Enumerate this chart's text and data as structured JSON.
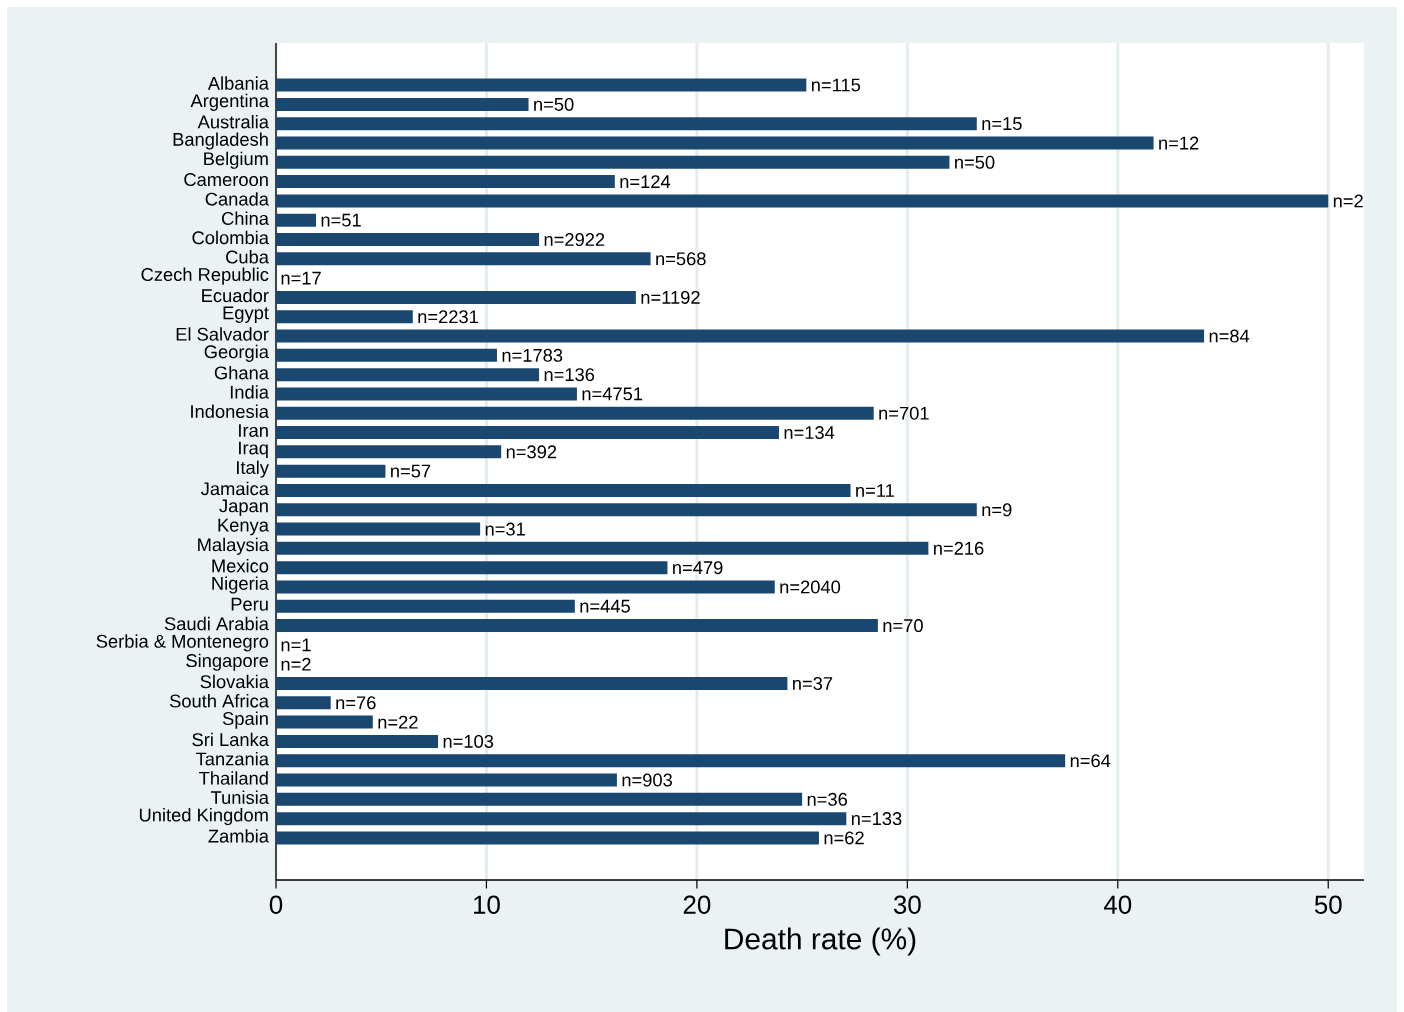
{
  "chart_data": {
    "type": "bar",
    "orientation": "horizontal",
    "xlabel": "Death rate (%)",
    "categories": [
      "Albania",
      "Argentina",
      "Australia",
      "Bangladesh",
      "Belgium",
      "Cameroon",
      "Canada",
      "China",
      "Colombia",
      "Cuba",
      "Czech Republic",
      "Ecuador",
      "Egypt",
      "El Salvador",
      "Georgia",
      "Ghana",
      "India",
      "Indonesia",
      "Iran",
      "Iraq",
      "Italy",
      "Jamaica",
      "Japan",
      "Kenya",
      "Malaysia",
      "Mexico",
      "Nigeria",
      "Peru",
      "Saudi Arabia",
      "Serbia & Montenegro",
      "Singapore",
      "Slovakia",
      "South Africa",
      "Spain",
      "Sri Lanka",
      "Tanzania",
      "Thailand",
      "Tunisia",
      "United Kingdom",
      "Zambia"
    ],
    "values": [
      25.2,
      12.0,
      33.3,
      41.7,
      32.0,
      16.1,
      50.0,
      1.9,
      12.5,
      17.8,
      0,
      17.1,
      6.5,
      44.1,
      10.5,
      12.5,
      14.3,
      28.4,
      23.9,
      10.7,
      5.2,
      27.3,
      33.3,
      9.7,
      31.0,
      18.6,
      23.7,
      14.2,
      28.6,
      0,
      0,
      24.3,
      2.6,
      4.6,
      7.7,
      37.5,
      16.2,
      25.0,
      27.1,
      25.8
    ],
    "annotations": [
      {
        "text": "n=115",
        "x": 25.2,
        "y": "Albania"
      },
      {
        "text": "n=50",
        "x": 12.0,
        "y": "Argentina"
      },
      {
        "text": "n=15",
        "x": 33.3,
        "y": "Australia"
      },
      {
        "text": "n=12",
        "x": 41.7,
        "y": "Bangladesh"
      },
      {
        "text": "n=50",
        "x": 32.0,
        "y": "Belgium"
      },
      {
        "text": "n=124",
        "x": 16.1,
        "y": "Cameroon"
      },
      {
        "text": "n=2",
        "x": 50.0,
        "y": "Canada"
      },
      {
        "text": "n=51",
        "x": 1.9,
        "y": "China"
      },
      {
        "text": "n=2922",
        "x": 12.5,
        "y": "Colombia"
      },
      {
        "text": "n=568",
        "x": 17.8,
        "y": "Cuba"
      },
      {
        "text": "n=17",
        "x": 0,
        "y": "Czech Republic"
      },
      {
        "text": "n=1192",
        "x": 17.1,
        "y": "Ecuador"
      },
      {
        "text": "n=2231",
        "x": 6.5,
        "y": "Egypt"
      },
      {
        "text": "n=84",
        "x": 44.1,
        "y": "El Salvador"
      },
      {
        "text": "n=1783",
        "x": 10.5,
        "y": "Georgia"
      },
      {
        "text": "n=136",
        "x": 12.5,
        "y": "Ghana"
      },
      {
        "text": "n=4751",
        "x": 14.3,
        "y": "India"
      },
      {
        "text": "n=701",
        "x": 28.4,
        "y": "Indonesia"
      },
      {
        "text": "n=134",
        "x": 23.9,
        "y": "Iran"
      },
      {
        "text": "n=392",
        "x": 10.7,
        "y": "Iraq"
      },
      {
        "text": "n=57",
        "x": 5.2,
        "y": "Italy"
      },
      {
        "text": "n=11",
        "x": 27.3,
        "y": "Jamaica"
      },
      {
        "text": "n=9",
        "x": 33.3,
        "y": "Japan"
      },
      {
        "text": "n=31",
        "x": 9.7,
        "y": "Kenya"
      },
      {
        "text": "n=216",
        "x": 31.0,
        "y": "Malaysia"
      },
      {
        "text": "n=479",
        "x": 18.6,
        "y": "Mexico"
      },
      {
        "text": "n=2040",
        "x": 23.7,
        "y": "Nigeria"
      },
      {
        "text": "n=445",
        "x": 14.2,
        "y": "Peru"
      },
      {
        "text": "n=70",
        "x": 28.6,
        "y": "Saudi Arabia"
      },
      {
        "text": "n=1",
        "x": 0,
        "y": "Serbia & Montenegro"
      },
      {
        "text": "n=2",
        "x": 0,
        "y": "Singapore"
      },
      {
        "text": "n=37",
        "x": 24.3,
        "y": "Slovakia"
      },
      {
        "text": "n=76",
        "x": 2.6,
        "y": "South Africa"
      },
      {
        "text": "n=22",
        "x": 4.6,
        "y": "Spain"
      },
      {
        "text": "n=103",
        "x": 7.7,
        "y": "Sri Lanka"
      },
      {
        "text": "n=64",
        "x": 37.5,
        "y": "Tanzania"
      },
      {
        "text": "n=903",
        "x": 16.2,
        "y": "Thailand"
      },
      {
        "text": "n=36",
        "x": 25.0,
        "y": "Tunisia"
      },
      {
        "text": "n=133",
        "x": 27.1,
        "y": "United Kingdom"
      },
      {
        "text": "n=62",
        "x": 25.8,
        "y": "Zambia"
      }
    ],
    "color": "#1a476f",
    "xlim": [
      0,
      51.7
    ],
    "xticks": [
      0,
      10,
      20,
      30,
      40,
      50
    ],
    "grid": "x"
  }
}
